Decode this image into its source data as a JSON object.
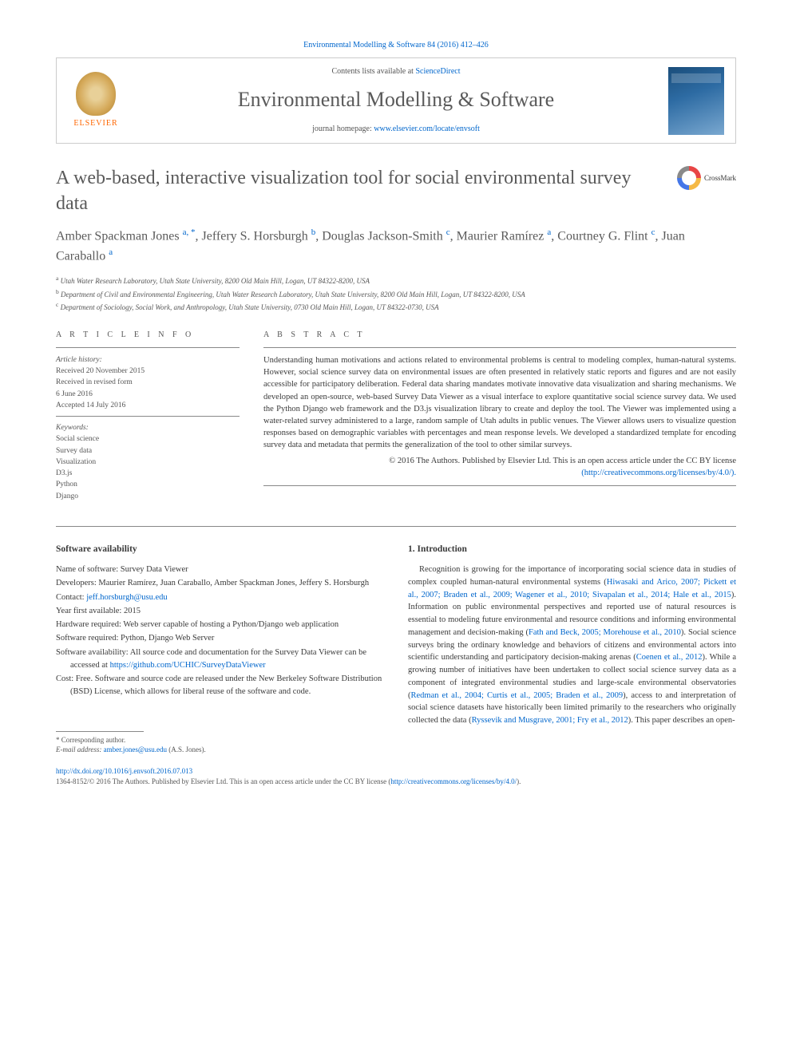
{
  "citation": "Environmental Modelling & Software 84 (2016) 412–426",
  "header": {
    "contents_prefix": "Contents lists available at ",
    "contents_link": "ScienceDirect",
    "journal": "Environmental Modelling & Software",
    "homepage_prefix": "journal homepage: ",
    "homepage_url": "www.elsevier.com/locate/envsoft",
    "publisher": "ELSEVIER"
  },
  "crossmark_label": "CrossMark",
  "title": "A web-based, interactive visualization tool for social environmental survey data",
  "authors_html": "Amber Spackman Jones <sup>a, *</sup>, Jeffery S. Horsburgh <sup>b</sup>, Douglas Jackson-Smith <sup>c</sup>, Maurier Ramírez <sup>a</sup>, Courtney G. Flint <sup>c</sup>, Juan Caraballo <sup>a</sup>",
  "affiliations": [
    {
      "sup": "a",
      "text": "Utah Water Research Laboratory, Utah State University, 8200 Old Main Hill, Logan, UT 84322-8200, USA"
    },
    {
      "sup": "b",
      "text": "Department of Civil and Environmental Engineering, Utah Water Research Laboratory, Utah State University, 8200 Old Main Hill, Logan, UT 84322-8200, USA"
    },
    {
      "sup": "c",
      "text": "Department of Sociology, Social Work, and Anthropology, Utah State University, 0730 Old Main Hill, Logan, UT 84322-0730, USA"
    }
  ],
  "info": {
    "heading": "A R T I C L E   I N F O",
    "history_label": "Article history:",
    "history": [
      "Received 20 November 2015",
      "Received in revised form",
      "6 June 2016",
      "Accepted 14 July 2016"
    ],
    "keywords_label": "Keywords:",
    "keywords": [
      "Social science",
      "Survey data",
      "Visualization",
      "D3.js",
      "Python",
      "Django"
    ]
  },
  "abstract": {
    "heading": "A B S T R A C T",
    "text": "Understanding human motivations and actions related to environmental problems is central to modeling complex, human-natural systems. However, social science survey data on environmental issues are often presented in relatively static reports and figures and are not easily accessible for participatory deliberation. Federal data sharing mandates motivate innovative data visualization and sharing mechanisms. We developed an open-source, web-based Survey Data Viewer as a visual interface to explore quantitative social science survey data. We used the Python Django web framework and the D3.js visualization library to create and deploy the tool. The Viewer was implemented using a water-related survey administered to a large, random sample of Utah adults in public venues. The Viewer allows users to visualize question responses based on demographic variables with percentages and mean response levels. We developed a standardized template for encoding survey data and metadata that permits the generalization of the tool to other similar surveys.",
    "copyright": "© 2016 The Authors. Published by Elsevier Ltd. This is an open access article under the CC BY license",
    "license_url_text": "(http://creativecommons.org/licenses/by/4.0/)."
  },
  "software": {
    "heading": "Software availability",
    "items": [
      {
        "text": "Name of software: Survey Data Viewer"
      },
      {
        "text": "Developers: Maurier Ramírez, Juan Caraballo, Amber Spackman Jones, Jeffery S. Horsburgh"
      },
      {
        "label": "Contact: ",
        "link": "jeff.horsburgh@usu.edu"
      },
      {
        "text": "Year first available: 2015"
      },
      {
        "text": "Hardware required: Web server capable of hosting a Python/Django web application"
      },
      {
        "text": "Software required: Python, Django Web Server"
      },
      {
        "label": "Software availability: All source code and documentation for the Survey Data Viewer can be accessed at ",
        "link": "https://github.com/UCHIC/SurveyDataViewer"
      },
      {
        "text": "Cost: Free. Software and source code are released under the New Berkeley Software Distribution (BSD) License, which allows for liberal reuse of the software and code."
      }
    ]
  },
  "intro": {
    "heading": "1. Introduction",
    "text_html": "Recognition is growing for the importance of incorporating social science data in studies of complex coupled human-natural environmental systems (<a>Hiwasaki and Arico, 2007; Pickett et al., 2007; Braden et al., 2009; Wagener et al., 2010; Sivapalan et al., 2014; Hale et al., 2015</a>). Information on public environmental perspectives and reported use of natural resources is essential to modeling future environmental and resource conditions and informing environmental management and decision-making (<a>Fath and Beck, 2005; Morehouse et al., 2010</a>). Social science surveys bring the ordinary knowledge and behaviors of citizens and environmental actors into scientific understanding and participatory decision-making arenas (<a>Coenen et al., 2012</a>). While a growing number of initiatives have been undertaken to collect social science survey data as a component of integrated environmental studies and large-scale environmental observatories (<a>Redman et al., 2004; Curtis et al., 2005; Braden et al., 2009</a>), access to and interpretation of social science datasets have historically been limited primarily to the researchers who originally collected the data (<a>Ryssevik and Musgrave, 2001; Fry et al., 2012</a>). This paper describes an open-"
  },
  "footnotes": {
    "corresponding": "* Corresponding author.",
    "email_label": "E-mail address: ",
    "email": "amber.jones@usu.edu",
    "email_suffix": " (A.S. Jones)."
  },
  "footer": {
    "doi": "http://dx.doi.org/10.1016/j.envsoft.2016.07.013",
    "issn_copyright": "1364-8152/© 2016 The Authors. Published by Elsevier Ltd. This is an open access article under the CC BY license (",
    "license_link": "http://creativecommons.org/licenses/by/4.0/",
    "suffix": ")."
  },
  "colors": {
    "link": "#0066cc",
    "heading": "#5a5a5a",
    "text": "#3a3a3a",
    "muted": "#555555",
    "rule": "#888888",
    "elsevier": "#ff6600"
  }
}
